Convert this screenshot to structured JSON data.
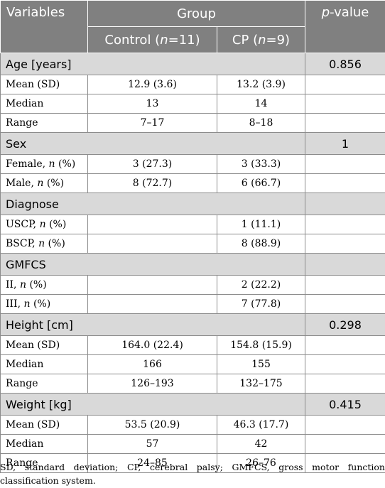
{
  "header": {
    "variables": "Variables",
    "group": "Group",
    "pvalue_p": "p",
    "pvalue_rest": "-value",
    "control_pre": "Control (",
    "control_n": "n",
    "control_post": "=11)",
    "cp_pre": "CP (",
    "cp_n": "n",
    "cp_post": "=9)"
  },
  "sections": [
    {
      "title": "Age [years]",
      "p": "0.856",
      "rows": [
        {
          "label": "Mean (SD)",
          "n_suffix": "",
          "control": "12.9 (3.6)",
          "cp": "13.2 (3.9)"
        },
        {
          "label": "Median",
          "n_suffix": "",
          "control": "13",
          "cp": "14"
        },
        {
          "label": "Range",
          "n_suffix": "",
          "control": "7–17",
          "cp": "8–18"
        }
      ]
    },
    {
      "title": "Sex",
      "p": "1",
      "rows": [
        {
          "label": "Female, ",
          "n_suffix": "n",
          "tail": " (%)",
          "control": "3 (27.3)",
          "cp": "3 (33.3)"
        },
        {
          "label": "Male, ",
          "n_suffix": "n",
          "tail": " (%)",
          "control": "8 (72.7)",
          "cp": "6 (66.7)"
        }
      ]
    },
    {
      "title": "Diagnose",
      "p": "",
      "rows": [
        {
          "label": "USCP, ",
          "n_suffix": "n",
          "tail": " (%)",
          "control": "",
          "cp": "1 (11.1)"
        },
        {
          "label": "BSCP, ",
          "n_suffix": "n",
          "tail": " (%)",
          "control": "",
          "cp": "8 (88.9)"
        }
      ]
    },
    {
      "title": "GMFCS",
      "p": "",
      "rows": [
        {
          "label": "II, ",
          "n_suffix": "n",
          "tail": " (%)",
          "control": "",
          "cp": "2 (22.2)"
        },
        {
          "label": "III, ",
          "n_suffix": "n",
          "tail": " (%)",
          "control": "",
          "cp": "7 (77.8)"
        }
      ]
    },
    {
      "title": "Height [cm]",
      "p": "0.298",
      "rows": [
        {
          "label": "Mean (SD)",
          "n_suffix": "",
          "control": "164.0 (22.4)",
          "cp": "154.8 (15.9)"
        },
        {
          "label": "Median",
          "n_suffix": "",
          "control": "166",
          "cp": "155"
        },
        {
          "label": "Range",
          "n_suffix": "",
          "control": "126–193",
          "cp": "132–175"
        }
      ]
    },
    {
      "title": "Weight [kg]",
      "p": "0.415",
      "rows": [
        {
          "label": "Mean (SD)",
          "n_suffix": "",
          "control": "53.5 (20.9)",
          "cp": "46.3 (17.7)"
        },
        {
          "label": "Median",
          "n_suffix": "",
          "control": "57",
          "cp": "42"
        },
        {
          "label": "Range",
          "n_suffix": "",
          "control": "24–85",
          "cp": "26–76"
        }
      ]
    }
  ],
  "footnote": "SD, standard deviation; CP, cerebral palsy; GMFCS, gross motor function classification system.",
  "colors": {
    "header_bg": "#808080",
    "section_bg": "#d9d9d9",
    "border": "#8c8c8c"
  }
}
